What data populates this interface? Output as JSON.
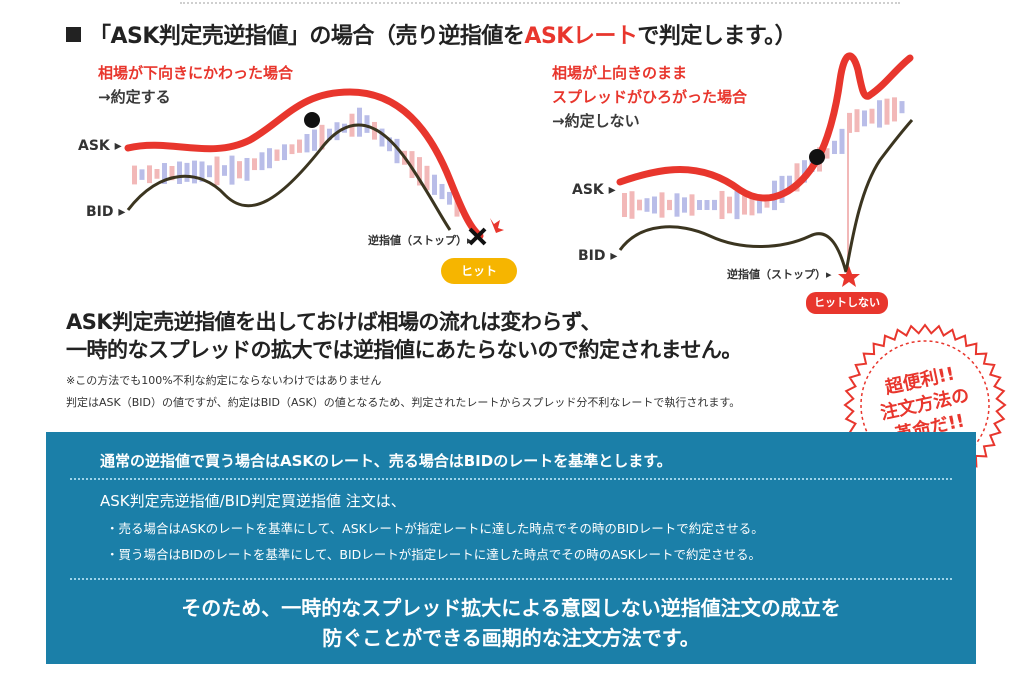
{
  "heading": {
    "prefix": "「ASK判定売逆指値」の場合（売り逆指値を",
    "accent": "ASKレート",
    "suffix": "で判定します。）"
  },
  "left_chart": {
    "condition_line1": "相場が下向きにかわった場合",
    "result": "→約定する",
    "ask_label": "ASK ▸",
    "bid_label": "BID ▸",
    "stop_label": "逆指値（ストップ）▸",
    "hit_badge": "ヒット"
  },
  "right_chart": {
    "condition_line1": "相場が上向きのまま",
    "condition_line2": "スプレッドがひろがった場合",
    "result": "→約定しない",
    "ask_label": "ASK ▸",
    "bid_label": "BID ▸",
    "stop_label": "逆指値（ストップ）▸",
    "nohit_badge": "ヒットしない"
  },
  "main_message": {
    "line1": "ASK判定売逆指値を出しておけば相場の流れは変わらず、",
    "line2": "一時的なスプレッドの拡大では逆指値にあたらないので約定されません。"
  },
  "notes": {
    "note1": "※この方法でも100%不利な約定にならないわけではありません",
    "note2": "判定はASK（BID）の値ですが、約定はBID（ASK）の値となるため、判定されたレートからスプレッド分不利なレートで執行されます。"
  },
  "badge": {
    "line1": "超便利!!",
    "line2": "注文方法の",
    "line3": "革命だ!!"
  },
  "panel": {
    "line1": "通常の逆指値で買う場合はASKのレート、売る場合はBIDのレートを基準とします。",
    "line2": "ASK判定売逆指値/BID判定買逆指値 注文は、",
    "line3": "・売る場合はASKのレートを基準にして、ASKレートが指定レートに達した時点でその時のBIDレートで約定させる。",
    "line4": "・買う場合はBIDのレートを基準にして、BIDレートが指定レートに達した時点でその時のASKレートで約定させる。",
    "line5": "そのため、一時的なスプレッド拡大による意図しない逆指値注文の成立を",
    "line6": "防ぐことができる画期的な注文方法です。"
  },
  "colors": {
    "ask_line": "#e8362d",
    "bid_line": "#3b3520",
    "panel_bg": "#1b7fa8",
    "hit_badge": "#f6b500",
    "candle_red": "#f2b8b8",
    "candle_blue": "#b9bde8"
  }
}
